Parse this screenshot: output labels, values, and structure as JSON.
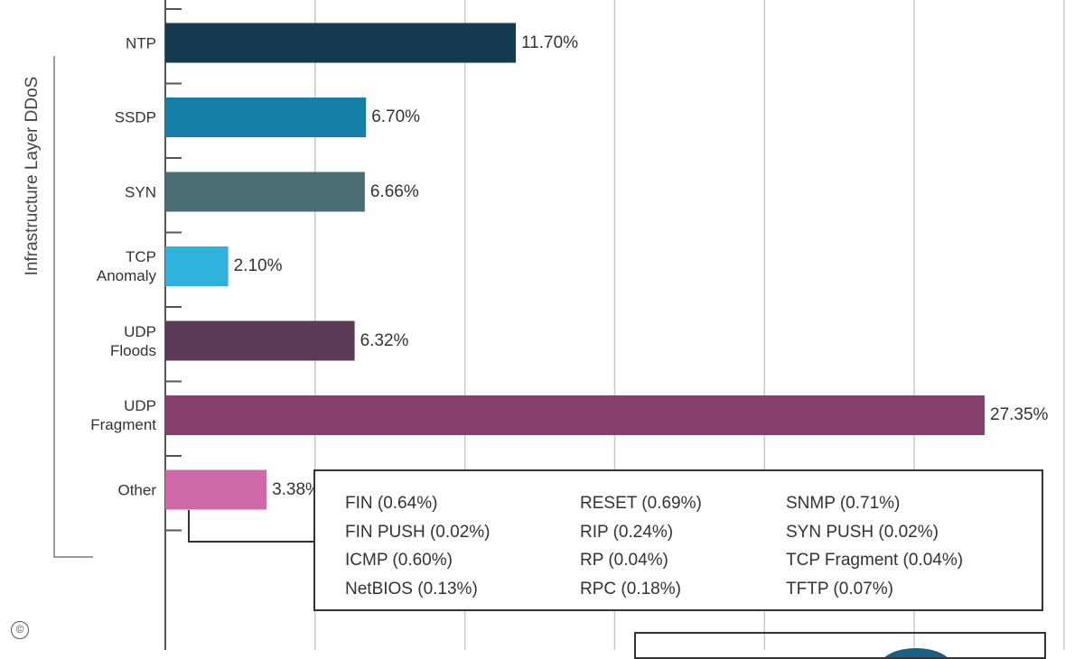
{
  "chart_data": {
    "type": "bar",
    "orientation": "horizontal",
    "ylabel": "Infrastructure Layer DDoS",
    "categories": [
      "NTP",
      "SSDP",
      "SYN",
      "TCP\nAnomaly",
      "UDP\nFloods",
      "UDP\nFragment",
      "Other"
    ],
    "values": [
      11.7,
      6.7,
      6.66,
      2.1,
      6.32,
      27.35,
      3.38
    ],
    "value_labels": [
      "11.70%",
      "6.70%",
      "6.66%",
      "2.10%",
      "6.32%",
      "27.35%",
      "3.38%"
    ],
    "colors": [
      "#143a4f",
      "#157fa7",
      "#4b6e74",
      "#2fb3dc",
      "#5a3b55",
      "#863f6e",
      "#d06aa6"
    ],
    "xlim": [
      0,
      30
    ],
    "grid": true
  },
  "other_breakdown": {
    "columns": [
      [
        "FIN (0.64%)",
        "FIN PUSH (0.02%)",
        "ICMP (0.60%)",
        "NetBIOS (0.13%)"
      ],
      [
        "RESET (0.69%)",
        "RIP (0.24%)",
        "RP (0.04%)",
        "RPC (0.18%)"
      ],
      [
        "SNMP (0.71%)",
        "SYN PUSH (0.02%)",
        "TCP Fragment (0.04%)",
        "TFTP (0.07%)"
      ]
    ]
  },
  "copyright_symbol": "©"
}
